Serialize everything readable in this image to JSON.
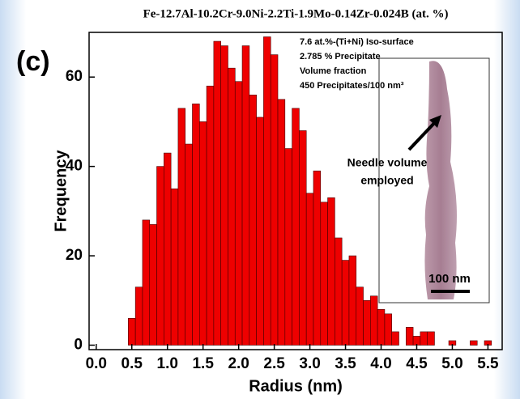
{
  "chart_data": {
    "type": "histogram",
    "title": "Fe-12.7Al-10.2Cr-9.0Ni-2.2Ti-1.9Mo-0.14Zr-0.024B (at. %)",
    "panel_label": "(c)",
    "xlabel": "Radius (nm)",
    "ylabel": "Frequency",
    "annotations": [
      "7.6 at.%-(Ti+Ni) Iso-surface",
      "2.785 % Precipitate",
      "Volume fraction",
      "450 Precipitates/100 nm³"
    ],
    "inset_label": [
      "Needle volume",
      "employed"
    ],
    "scale_bar": "100 nm",
    "color": "#ee0000",
    "bins": [
      0.45,
      0.55,
      0.65,
      0.75,
      0.85,
      0.95,
      1.05,
      1.15,
      1.25,
      1.35,
      1.45,
      1.55,
      1.65,
      1.75,
      1.85,
      1.95,
      2.05,
      2.15,
      2.25,
      2.35,
      2.45,
      2.55,
      2.65,
      2.75,
      2.85,
      2.95,
      3.05,
      3.15,
      3.25,
      3.35,
      3.45,
      3.55,
      3.65,
      3.75,
      3.85,
      3.95,
      4.05,
      4.15,
      4.25,
      4.35,
      4.45,
      4.55,
      4.65,
      4.75,
      4.85,
      4.95,
      5.05,
      5.15,
      5.25,
      5.35,
      5.45,
      5.55
    ],
    "values": [
      6,
      13,
      28,
      27,
      40,
      43,
      35,
      53,
      45,
      54,
      50,
      58,
      68,
      67,
      62,
      59,
      67,
      56,
      51,
      69,
      65,
      55,
      44,
      53,
      48,
      34,
      39,
      32,
      33,
      24,
      19,
      20,
      13,
      10,
      11,
      8,
      7,
      3,
      0,
      4,
      2,
      3,
      3,
      0,
      0,
      1,
      0,
      0,
      1,
      0,
      1
    ],
    "xlim": [
      -0.1,
      5.7
    ],
    "ylim": [
      -1,
      70
    ],
    "xticks": [
      {
        "value": 0,
        "label": "0.0"
      },
      0.5,
      {
        "value": 1,
        "label": "1.0"
      },
      1.5,
      {
        "value": 2,
        "label": "2.0"
      },
      2.5,
      {
        "value": 3,
        "label": "3.0"
      },
      3.5,
      {
        "value": 4,
        "label": "4.0"
      },
      4.5,
      {
        "value": 5,
        "label": "5.0"
      },
      5.5
    ],
    "yticks": [
      0,
      20,
      40,
      60
    ]
  }
}
